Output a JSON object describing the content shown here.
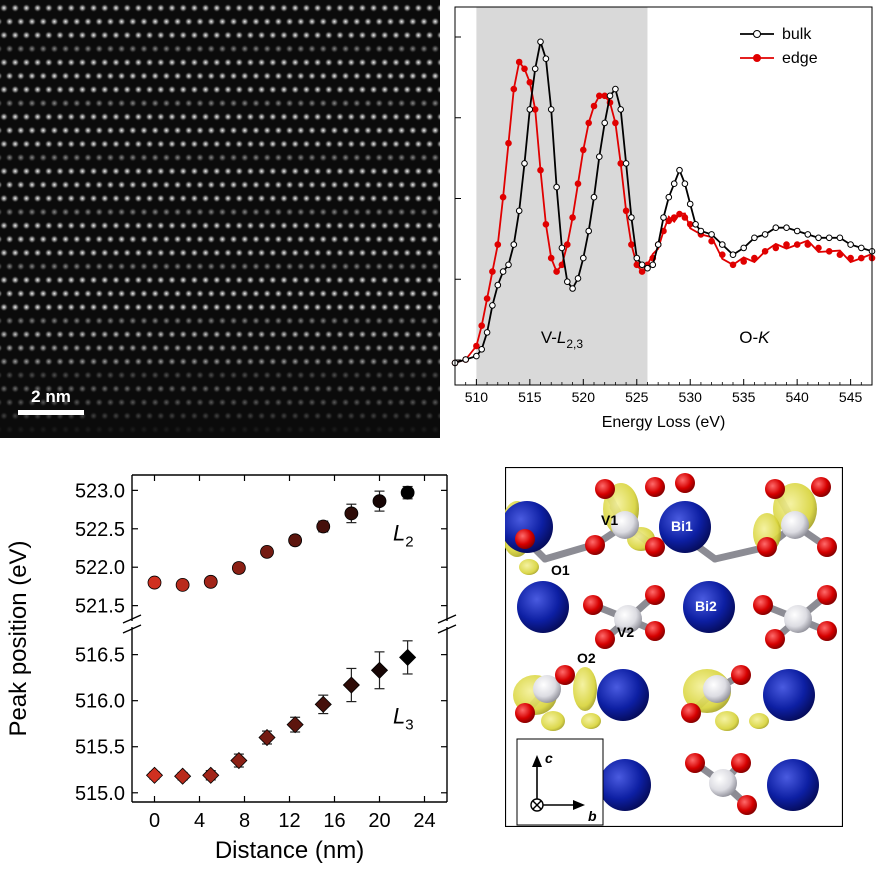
{
  "colors": {
    "bulk": "#000000",
    "edge": "#e00000",
    "shaded_region": "#d9d9d9",
    "marker_L2_near": "#b03a2e",
    "marker_L2_far": "#000000",
    "bi_atom": "#0d1fa3",
    "o_atom": "#d60000",
    "v_atom": "#e8e8ec",
    "isosurface": "#e6e24a"
  },
  "stem": {
    "scalebar_label": "2 nm"
  },
  "chart_data": [
    {
      "type": "line",
      "xlabel": "Energy Loss (eV)",
      "xlim": [
        508,
        547
      ],
      "x_ticks": [
        510,
        515,
        520,
        525,
        530,
        535,
        540,
        545
      ],
      "y_ticks_shown_without_labels": 5,
      "shaded_region": [
        510,
        526
      ],
      "region_labels": [
        {
          "text": "V-",
          "italic": "L",
          "sub": "2,3",
          "x": 518
        },
        {
          "text": "O-",
          "italic": "K",
          "x": 536
        }
      ],
      "legend": "top-right",
      "series": [
        {
          "name": "bulk",
          "marker": "open-circle",
          "points": [
            [
              508,
              0.03
            ],
            [
              509,
              0.04
            ],
            [
              510,
              0.05
            ],
            [
              510.5,
              0.07
            ],
            [
              511,
              0.12
            ],
            [
              511.5,
              0.2
            ],
            [
              512,
              0.26
            ],
            [
              512.5,
              0.3
            ],
            [
              513,
              0.32
            ],
            [
              513.5,
              0.38
            ],
            [
              514,
              0.48
            ],
            [
              514.5,
              0.62
            ],
            [
              515,
              0.78
            ],
            [
              515.5,
              0.9
            ],
            [
              516,
              0.98
            ],
            [
              516.5,
              0.93
            ],
            [
              517,
              0.78
            ],
            [
              517.5,
              0.55
            ],
            [
              518,
              0.37
            ],
            [
              518.5,
              0.27
            ],
            [
              519,
              0.25
            ],
            [
              519.5,
              0.28
            ],
            [
              520,
              0.34
            ],
            [
              520.5,
              0.42
            ],
            [
              521,
              0.52
            ],
            [
              521.5,
              0.64
            ],
            [
              522,
              0.74
            ],
            [
              522.5,
              0.82
            ],
            [
              523,
              0.84
            ],
            [
              523.5,
              0.78
            ],
            [
              524,
              0.62
            ],
            [
              524.5,
              0.46
            ],
            [
              525,
              0.34
            ],
            [
              525.5,
              0.32
            ],
            [
              526,
              0.31
            ],
            [
              526.5,
              0.32
            ],
            [
              527,
              0.38
            ],
            [
              527.5,
              0.46
            ],
            [
              528,
              0.52
            ],
            [
              528.5,
              0.56
            ],
            [
              529,
              0.6
            ],
            [
              529.5,
              0.56
            ],
            [
              530,
              0.5
            ],
            [
              530.5,
              0.44
            ],
            [
              531,
              0.42
            ],
            [
              532,
              0.41
            ],
            [
              533,
              0.38
            ],
            [
              534,
              0.35
            ],
            [
              535,
              0.37
            ],
            [
              536,
              0.4
            ],
            [
              537,
              0.41
            ],
            [
              538,
              0.43
            ],
            [
              539,
              0.43
            ],
            [
              540,
              0.42
            ],
            [
              541,
              0.41
            ],
            [
              542,
              0.4
            ],
            [
              543,
              0.4
            ],
            [
              544,
              0.4
            ],
            [
              545,
              0.38
            ],
            [
              546,
              0.37
            ],
            [
              547,
              0.36
            ]
          ]
        },
        {
          "name": "edge",
          "marker": "filled-circle",
          "points": [
            [
              508,
              0.03
            ],
            [
              509,
              0.04
            ],
            [
              510,
              0.08
            ],
            [
              510.5,
              0.14
            ],
            [
              511,
              0.22
            ],
            [
              511.5,
              0.3
            ],
            [
              512,
              0.38
            ],
            [
              512.5,
              0.52
            ],
            [
              513,
              0.68
            ],
            [
              513.5,
              0.84
            ],
            [
              514,
              0.92
            ],
            [
              514.5,
              0.9
            ],
            [
              515,
              0.86
            ],
            [
              515.5,
              0.78
            ],
            [
              516,
              0.6
            ],
            [
              516.5,
              0.44
            ],
            [
              517,
              0.34
            ],
            [
              517.5,
              0.3
            ],
            [
              518,
              0.32
            ],
            [
              518.5,
              0.38
            ],
            [
              519,
              0.46
            ],
            [
              519.5,
              0.56
            ],
            [
              520,
              0.66
            ],
            [
              520.5,
              0.74
            ],
            [
              521,
              0.79
            ],
            [
              521.5,
              0.82
            ],
            [
              522,
              0.82
            ],
            [
              522.5,
              0.8
            ],
            [
              523,
              0.74
            ],
            [
              523.5,
              0.62
            ],
            [
              524,
              0.48
            ],
            [
              524.5,
              0.38
            ],
            [
              525,
              0.32
            ],
            [
              525.5,
              0.3
            ],
            [
              526,
              0.32
            ],
            [
              526.5,
              0.34
            ],
            [
              527,
              0.38
            ],
            [
              527.5,
              0.42
            ],
            [
              528,
              0.45
            ],
            [
              528.5,
              0.46
            ],
            [
              529,
              0.47
            ],
            [
              529.5,
              0.46
            ],
            [
              530,
              0.44
            ],
            [
              531,
              0.41
            ],
            [
              532,
              0.39
            ],
            [
              533,
              0.35
            ],
            [
              534,
              0.32
            ],
            [
              535,
              0.33
            ],
            [
              536,
              0.34
            ],
            [
              537,
              0.36
            ],
            [
              538,
              0.37
            ],
            [
              539,
              0.38
            ],
            [
              540,
              0.38
            ],
            [
              541,
              0.38
            ],
            [
              542,
              0.37
            ],
            [
              543,
              0.36
            ],
            [
              544,
              0.35
            ],
            [
              545,
              0.34
            ],
            [
              546,
              0.34
            ],
            [
              547,
              0.34
            ]
          ]
        }
      ]
    },
    {
      "type": "scatter",
      "xlabel": "Distance (nm)",
      "ylabel": "Peak position  (eV)",
      "xlim": [
        -2,
        26
      ],
      "x_ticks": [
        0,
        4,
        8,
        12,
        16,
        20,
        24
      ],
      "broken_y_axis": true,
      "upper_ylim": [
        521.3,
        523.2
      ],
      "upper_ticks": [
        "521.5",
        "522.0",
        "522.5",
        "523.0"
      ],
      "lower_ylim": [
        514.9,
        516.8
      ],
      "lower_ticks": [
        "515.0",
        "515.5",
        "516.0",
        "516.5"
      ],
      "series": [
        {
          "name": "L2",
          "label_main": "L",
          "label_sub": "2",
          "marker": "circle",
          "x": [
            0,
            2.5,
            5,
            7.5,
            10,
            12.5,
            15,
            17.5,
            20,
            22.5
          ],
          "y": [
            521.8,
            521.77,
            521.81,
            521.99,
            522.2,
            522.35,
            522.53,
            522.7,
            522.86,
            522.97
          ],
          "err": [
            0.04,
            0.04,
            0.05,
            0.06,
            0.05,
            0.06,
            0.07,
            0.12,
            0.13,
            0.08
          ]
        },
        {
          "name": "L3",
          "label_main": "L",
          "label_sub": "3",
          "marker": "diamond",
          "x": [
            0,
            2.5,
            5,
            7.5,
            10,
            12.5,
            15,
            17.5,
            20,
            22.5
          ],
          "y": [
            515.19,
            515.18,
            515.19,
            515.35,
            515.6,
            515.74,
            515.96,
            516.17,
            516.33,
            516.47
          ],
          "err": [
            0.04,
            0.04,
            0.05,
            0.07,
            0.07,
            0.08,
            0.1,
            0.18,
            0.2,
            0.18
          ]
        }
      ]
    }
  ],
  "structure": {
    "labels": {
      "v1": "V1",
      "v2": "V2",
      "bi1": "Bi1",
      "bi2": "Bi2",
      "o1": "O1",
      "o2": "O2"
    },
    "axes": {
      "c": "c",
      "b": "b"
    }
  }
}
